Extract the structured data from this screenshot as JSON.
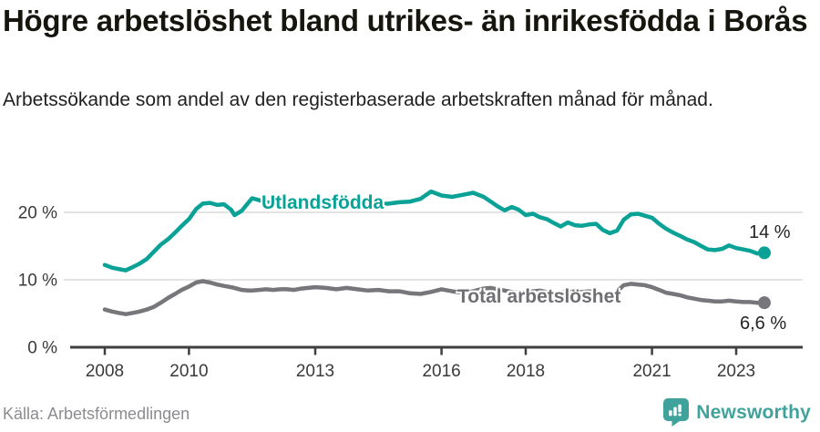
{
  "header": {
    "title": "Högre arbetslöshet bland utrikes- än inrikesfödda i Borås",
    "subtitle": "Arbetssökande som andel av den registerbaserade arbetskraften månad för månad."
  },
  "footer": {
    "source": "Källa: Arbetsförmedlingen",
    "brand": "Newsworthy"
  },
  "colors": {
    "teal": "#0aa296",
    "gray": "#76767b",
    "grid": "#dcdcdc",
    "axis": "#3f3f3f",
    "axis_text": "#3a3a3a",
    "title_text": "#16160f",
    "source_text": "#8c8c90",
    "brand_teal": "#3fa39c",
    "background": "#ffffff"
  },
  "chart_data": {
    "type": "line",
    "title": "Högre arbetslöshet bland utrikes- än inrikesfödda i Borås",
    "subtitle": "Arbetssökande som andel av den registerbaserade arbetskraften månad för månad.",
    "xlabel": "",
    "ylabel": "",
    "grid": "horizontal",
    "legend": "inline-labels",
    "xlim": [
      2008,
      2024
    ],
    "ylim": [
      0,
      25
    ],
    "xticks": [
      2008,
      2010,
      2013,
      2016,
      2018,
      2021,
      2023
    ],
    "yticks": [
      {
        "value": 0,
        "label": "0 %"
      },
      {
        "value": 10,
        "label": "10 %"
      },
      {
        "value": 20,
        "label": "20 %"
      }
    ],
    "x": [
      2008.0,
      2008.17,
      2008.33,
      2008.5,
      2008.67,
      2008.83,
      2009.0,
      2009.17,
      2009.33,
      2009.5,
      2009.67,
      2009.83,
      2010.0,
      2010.17,
      2010.33,
      2010.5,
      2010.67,
      2010.83,
      2011.0,
      2011.08,
      2011.25,
      2011.42,
      2011.5,
      2011.67,
      2011.83,
      2012.0,
      2012.17,
      2012.33,
      2012.5,
      2012.67,
      2012.83,
      2013.0,
      2013.25,
      2013.5,
      2013.75,
      2014.0,
      2014.25,
      2014.5,
      2014.75,
      2015.0,
      2015.25,
      2015.5,
      2015.75,
      2016.0,
      2016.25,
      2016.5,
      2016.75,
      2017.0,
      2017.17,
      2017.33,
      2017.5,
      2017.67,
      2017.83,
      2018.0,
      2018.17,
      2018.33,
      2018.5,
      2018.67,
      2018.83,
      2019.0,
      2019.17,
      2019.33,
      2019.5,
      2019.67,
      2019.83,
      2020.0,
      2020.17,
      2020.33,
      2020.5,
      2020.67,
      2020.83,
      2021.0,
      2021.17,
      2021.33,
      2021.5,
      2021.67,
      2021.83,
      2022.0,
      2022.17,
      2022.33,
      2022.5,
      2022.67,
      2022.83,
      2023.0,
      2023.17,
      2023.33,
      2023.5,
      2023.67
    ],
    "series": [
      {
        "name": "Utlandsfödda",
        "color": "#0aa296",
        "end_label": "14 %",
        "end_value": 14.0,
        "values": [
          12.2,
          11.8,
          11.6,
          11.4,
          11.9,
          12.4,
          13.1,
          14.2,
          15.2,
          16.0,
          17.0,
          18.0,
          19.0,
          20.5,
          21.3,
          21.4,
          21.1,
          21.2,
          20.4,
          19.6,
          20.2,
          21.5,
          22.1,
          21.8,
          21.5,
          21.4,
          21.8,
          21.4,
          21.2,
          21.3,
          21.3,
          21.2,
          21.4,
          21.3,
          21.2,
          21.1,
          21.0,
          21.2,
          21.3,
          21.5,
          21.6,
          22.0,
          23.1,
          22.5,
          22.3,
          22.6,
          22.9,
          22.3,
          21.6,
          20.9,
          20.3,
          20.8,
          20.4,
          19.6,
          19.8,
          19.3,
          19.0,
          18.4,
          17.9,
          18.5,
          18.1,
          18.0,
          18.2,
          18.3,
          17.4,
          16.9,
          17.3,
          18.9,
          19.7,
          19.8,
          19.5,
          19.2,
          18.3,
          17.6,
          17.0,
          16.5,
          16.0,
          15.6,
          15.0,
          14.5,
          14.4,
          14.6,
          15.1,
          14.7,
          14.5,
          14.3,
          13.9,
          14.0
        ]
      },
      {
        "name": "Total arbetslöshet",
        "color": "#76767b",
        "end_label": "6,6 %",
        "end_value": 6.6,
        "values": [
          5.6,
          5.3,
          5.1,
          4.9,
          5.1,
          5.3,
          5.6,
          6.0,
          6.6,
          7.3,
          7.9,
          8.5,
          9.0,
          9.6,
          9.8,
          9.6,
          9.3,
          9.1,
          8.9,
          8.8,
          8.5,
          8.4,
          8.4,
          8.5,
          8.6,
          8.5,
          8.6,
          8.6,
          8.5,
          8.7,
          8.8,
          8.9,
          8.8,
          8.6,
          8.8,
          8.6,
          8.4,
          8.5,
          8.3,
          8.3,
          8.0,
          7.9,
          8.2,
          8.6,
          8.3,
          8.1,
          8.3,
          8.7,
          8.8,
          8.6,
          8.4,
          8.2,
          8.1,
          8.0,
          8.3,
          8.4,
          8.2,
          8.1,
          8.0,
          8.3,
          8.1,
          8.2,
          8.3,
          8.1,
          8.0,
          7.9,
          8.3,
          9.2,
          9.4,
          9.3,
          9.2,
          8.9,
          8.5,
          8.1,
          7.9,
          7.7,
          7.4,
          7.2,
          7.0,
          6.9,
          6.8,
          6.8,
          6.9,
          6.8,
          6.7,
          6.7,
          6.6,
          6.6
        ]
      }
    ]
  }
}
